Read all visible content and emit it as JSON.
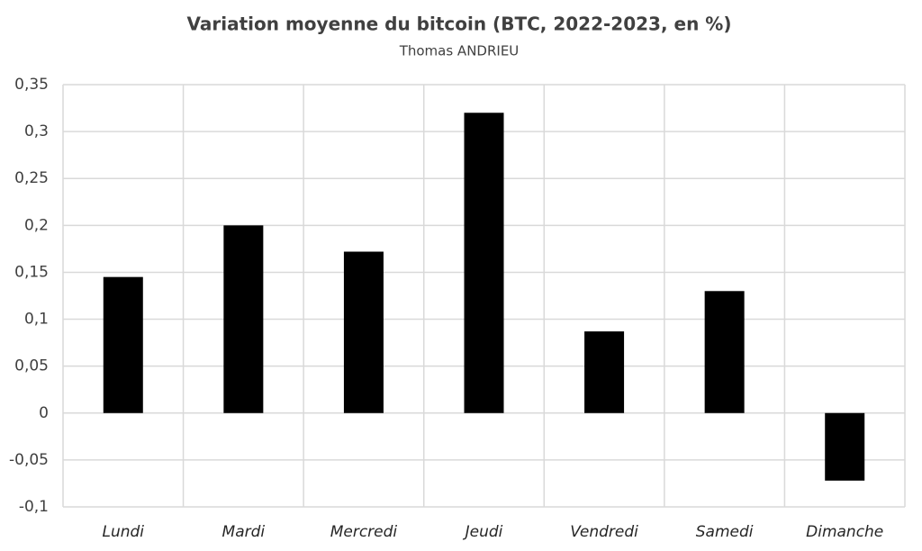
{
  "chart_data": {
    "type": "bar",
    "title": "Variation moyenne du bitcoin (BTC, 2022-2023, en %)",
    "subtitle": "Thomas ANDRIEU",
    "categories": [
      "Lundi",
      "Mardi",
      "Mercredi",
      "Jeudi",
      "Vendredi",
      "Samedi",
      "Dimanche"
    ],
    "values": [
      0.145,
      0.2,
      0.172,
      0.32,
      0.087,
      0.13,
      -0.072
    ],
    "color": "#000000",
    "ylim": [
      -0.1,
      0.35
    ],
    "yticks": [
      {
        "value": -0.1,
        "label": "-0,1"
      },
      {
        "value": -0.05,
        "label": "-0,05"
      },
      0,
      {
        "value": 0.05,
        "label": "0,05"
      },
      {
        "value": 0.1,
        "label": "0,1"
      },
      {
        "value": 0.15,
        "label": "0,15"
      },
      {
        "value": 0.2,
        "label": "0,2"
      },
      {
        "value": 0.25,
        "label": "0,25"
      },
      {
        "value": 0.3,
        "label": "0,3"
      },
      {
        "value": 0.35,
        "label": "0,35"
      }
    ],
    "grid": true
  }
}
